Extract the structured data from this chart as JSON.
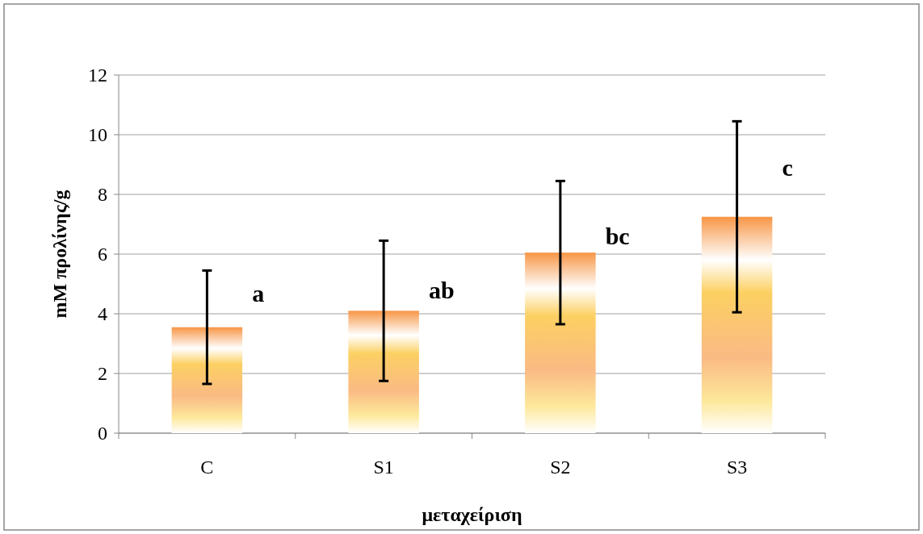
{
  "chart_data": {
    "type": "bar",
    "xlabel": "μεταχείριση",
    "ylabel": "mM προλίνης/g",
    "categories": [
      "C",
      "S1",
      "S2",
      "S3"
    ],
    "values": [
      3.55,
      4.1,
      6.05,
      7.25
    ],
    "errors": [
      1.9,
      2.35,
      2.4,
      3.2
    ],
    "color": "#f79646",
    "ylim": [
      0,
      12
    ],
    "yticks": [
      0,
      2,
      4,
      6,
      8,
      10,
      12
    ],
    "grid": "y",
    "annotations": [
      {
        "text": "a",
        "x": "C",
        "y": 4.7
      },
      {
        "text": "ab",
        "x": "S1",
        "y": 4.8
      },
      {
        "text": "bc",
        "x": "S2",
        "y": 6.6
      },
      {
        "text": "c",
        "x": "S3",
        "y": 8.9
      }
    ]
  }
}
